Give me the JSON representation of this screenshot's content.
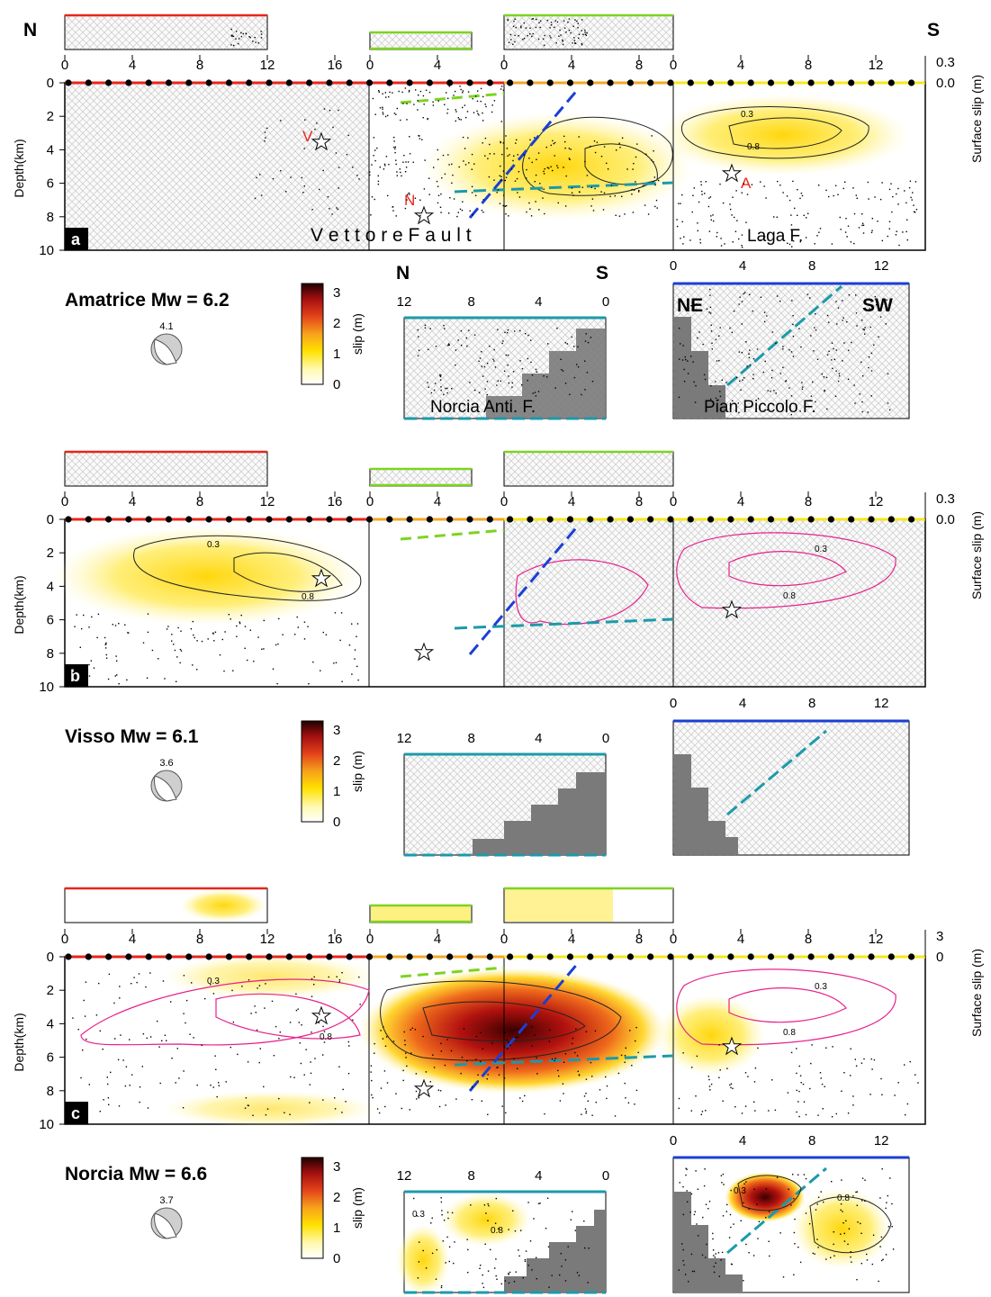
{
  "header": {
    "left_dir": "N",
    "right_dir": "S"
  },
  "y_axis": {
    "label": "Depth(km)",
    "ticks": [
      "0",
      "2",
      "4",
      "6",
      "8",
      "10"
    ]
  },
  "surface_axis": {
    "label": "Surface slip (m)",
    "ticks_ab": [
      "0.3",
      "0.0"
    ],
    "ticks_c": [
      "3",
      "0"
    ]
  },
  "fault_x_ticks": {
    "f1": [
      "0",
      "4",
      "8",
      "12",
      "16"
    ],
    "f2": [
      "0",
      "4"
    ],
    "f3": [
      "0",
      "4",
      "8"
    ],
    "f4": [
      "0",
      "4",
      "8",
      "12"
    ]
  },
  "antithetic_x_ticks": {
    "norcia": [
      "12",
      "8",
      "4",
      "0"
    ],
    "pian": [
      "0",
      "4",
      "8",
      "12"
    ]
  },
  "fault_labels": {
    "vettore": "V e t t o r e   F a u l t",
    "laga": "Laga F.",
    "norcia_anti": "Norcia Anti. F.",
    "pian_piccolo": "Pian Piccolo F.",
    "ne": "NE",
    "sw": "SW",
    "n": "N",
    "s": "S"
  },
  "hypocenter_labels": {
    "v": "V",
    "n": "N",
    "a": "A"
  },
  "contour_labels": {
    "low": "0.3",
    "high": "0.8"
  },
  "colorbar": {
    "label": "slip (m)",
    "ticks": [
      "3",
      "2",
      "1",
      "0"
    ]
  },
  "events": [
    {
      "panel": "a",
      "title": "Amatrice Mw = 6.2",
      "focal_depth": "4.1"
    },
    {
      "panel": "b",
      "title": "Visso Mw = 6.1",
      "focal_depth": "3.6"
    },
    {
      "panel": "c",
      "title": "Norcia Mw = 6.6",
      "focal_depth": "3.7"
    }
  ],
  "colors": {
    "hatch": "#cfcfcf",
    "red_trace": "#e8251a",
    "green_trace": "#7ed320",
    "orange_trace": "#f5a623",
    "yellow_trace": "#f8e71c",
    "blue_trace": "#1a3fd6",
    "cyan_dash": "#1b9aaa",
    "blue_dash": "#1a3fd6",
    "magenta": "#e8218c",
    "hypo_red": "#e8251a"
  }
}
